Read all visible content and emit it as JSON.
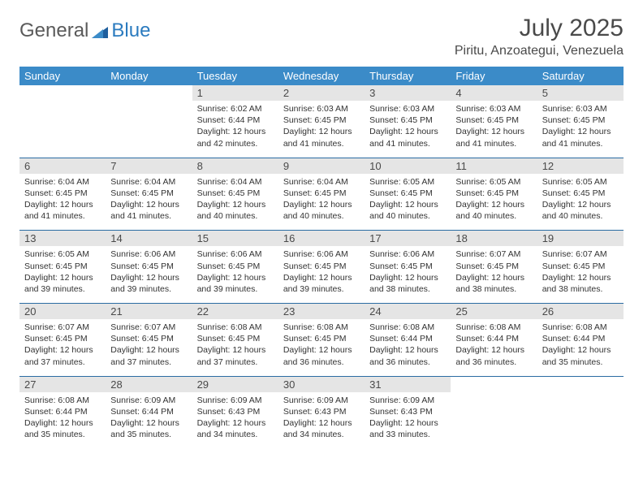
{
  "logo": {
    "text1": "General",
    "text2": "Blue"
  },
  "title": "July 2025",
  "location": "Piritu, Anzoategui, Venezuela",
  "colors": {
    "header_bg": "#3b8bc8",
    "header_text": "#ffffff",
    "daynum_bg": "#e5e5e5",
    "row_border": "#2b6ca3",
    "logo_gray": "#5a5a5a",
    "logo_blue": "#2b7bbf"
  },
  "days_of_week": [
    "Sunday",
    "Monday",
    "Tuesday",
    "Wednesday",
    "Thursday",
    "Friday",
    "Saturday"
  ],
  "weeks": [
    [
      null,
      null,
      {
        "n": "1",
        "sr": "6:02 AM",
        "ss": "6:44 PM",
        "dl": "12 hours and 42 minutes."
      },
      {
        "n": "2",
        "sr": "6:03 AM",
        "ss": "6:45 PM",
        "dl": "12 hours and 41 minutes."
      },
      {
        "n": "3",
        "sr": "6:03 AM",
        "ss": "6:45 PM",
        "dl": "12 hours and 41 minutes."
      },
      {
        "n": "4",
        "sr": "6:03 AM",
        "ss": "6:45 PM",
        "dl": "12 hours and 41 minutes."
      },
      {
        "n": "5",
        "sr": "6:03 AM",
        "ss": "6:45 PM",
        "dl": "12 hours and 41 minutes."
      }
    ],
    [
      {
        "n": "6",
        "sr": "6:04 AM",
        "ss": "6:45 PM",
        "dl": "12 hours and 41 minutes."
      },
      {
        "n": "7",
        "sr": "6:04 AM",
        "ss": "6:45 PM",
        "dl": "12 hours and 41 minutes."
      },
      {
        "n": "8",
        "sr": "6:04 AM",
        "ss": "6:45 PM",
        "dl": "12 hours and 40 minutes."
      },
      {
        "n": "9",
        "sr": "6:04 AM",
        "ss": "6:45 PM",
        "dl": "12 hours and 40 minutes."
      },
      {
        "n": "10",
        "sr": "6:05 AM",
        "ss": "6:45 PM",
        "dl": "12 hours and 40 minutes."
      },
      {
        "n": "11",
        "sr": "6:05 AM",
        "ss": "6:45 PM",
        "dl": "12 hours and 40 minutes."
      },
      {
        "n": "12",
        "sr": "6:05 AM",
        "ss": "6:45 PM",
        "dl": "12 hours and 40 minutes."
      }
    ],
    [
      {
        "n": "13",
        "sr": "6:05 AM",
        "ss": "6:45 PM",
        "dl": "12 hours and 39 minutes."
      },
      {
        "n": "14",
        "sr": "6:06 AM",
        "ss": "6:45 PM",
        "dl": "12 hours and 39 minutes."
      },
      {
        "n": "15",
        "sr": "6:06 AM",
        "ss": "6:45 PM",
        "dl": "12 hours and 39 minutes."
      },
      {
        "n": "16",
        "sr": "6:06 AM",
        "ss": "6:45 PM",
        "dl": "12 hours and 39 minutes."
      },
      {
        "n": "17",
        "sr": "6:06 AM",
        "ss": "6:45 PM",
        "dl": "12 hours and 38 minutes."
      },
      {
        "n": "18",
        "sr": "6:07 AM",
        "ss": "6:45 PM",
        "dl": "12 hours and 38 minutes."
      },
      {
        "n": "19",
        "sr": "6:07 AM",
        "ss": "6:45 PM",
        "dl": "12 hours and 38 minutes."
      }
    ],
    [
      {
        "n": "20",
        "sr": "6:07 AM",
        "ss": "6:45 PM",
        "dl": "12 hours and 37 minutes."
      },
      {
        "n": "21",
        "sr": "6:07 AM",
        "ss": "6:45 PM",
        "dl": "12 hours and 37 minutes."
      },
      {
        "n": "22",
        "sr": "6:08 AM",
        "ss": "6:45 PM",
        "dl": "12 hours and 37 minutes."
      },
      {
        "n": "23",
        "sr": "6:08 AM",
        "ss": "6:45 PM",
        "dl": "12 hours and 36 minutes."
      },
      {
        "n": "24",
        "sr": "6:08 AM",
        "ss": "6:44 PM",
        "dl": "12 hours and 36 minutes."
      },
      {
        "n": "25",
        "sr": "6:08 AM",
        "ss": "6:44 PM",
        "dl": "12 hours and 36 minutes."
      },
      {
        "n": "26",
        "sr": "6:08 AM",
        "ss": "6:44 PM",
        "dl": "12 hours and 35 minutes."
      }
    ],
    [
      {
        "n": "27",
        "sr": "6:08 AM",
        "ss": "6:44 PM",
        "dl": "12 hours and 35 minutes."
      },
      {
        "n": "28",
        "sr": "6:09 AM",
        "ss": "6:44 PM",
        "dl": "12 hours and 35 minutes."
      },
      {
        "n": "29",
        "sr": "6:09 AM",
        "ss": "6:43 PM",
        "dl": "12 hours and 34 minutes."
      },
      {
        "n": "30",
        "sr": "6:09 AM",
        "ss": "6:43 PM",
        "dl": "12 hours and 34 minutes."
      },
      {
        "n": "31",
        "sr": "6:09 AM",
        "ss": "6:43 PM",
        "dl": "12 hours and 33 minutes."
      },
      null,
      null
    ]
  ],
  "labels": {
    "sunrise": "Sunrise:",
    "sunset": "Sunset:",
    "daylight": "Daylight:"
  }
}
